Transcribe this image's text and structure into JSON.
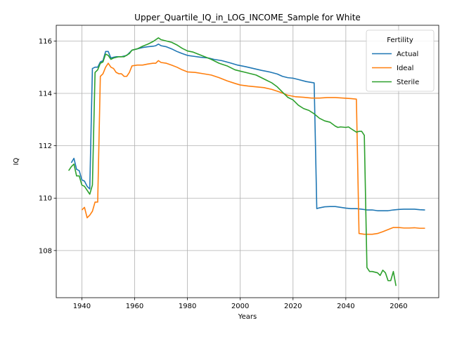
{
  "chart_data": {
    "type": "line",
    "title": "Upper_Quartile_IQ_in_LOG_INCOME_Sample for White",
    "xlabel": "Years",
    "ylabel": "IQ",
    "xlim": [
      1930.3,
      2075.2
    ],
    "ylim": [
      106.2,
      116.6
    ],
    "xticks": [
      1940,
      1960,
      1980,
      2000,
      2020,
      2040,
      2060
    ],
    "yticks": [
      108,
      110,
      112,
      114,
      116
    ],
    "grid": true,
    "legend": {
      "title": "Fertility",
      "placement": "top-right"
    },
    "colors": {
      "Actual": "#1f77b4",
      "Ideal": "#ff7f0e",
      "Sterile": "#2ca02c"
    },
    "series": [
      {
        "name": "Actual",
        "points": [
          [
            1936,
            111.35
          ],
          [
            1937,
            111.52
          ],
          [
            1938,
            111.1
          ],
          [
            1939,
            111.05
          ],
          [
            1940,
            110.7
          ],
          [
            1941,
            110.65
          ],
          [
            1942,
            110.45
          ],
          [
            1943,
            110.35
          ],
          [
            1944,
            114.95
          ],
          [
            1945,
            115.0
          ],
          [
            1946,
            115.0
          ],
          [
            1947,
            115.2
          ],
          [
            1948,
            115.25
          ],
          [
            1949,
            115.6
          ],
          [
            1950,
            115.6
          ],
          [
            1951,
            115.35
          ],
          [
            1952,
            115.38
          ],
          [
            1953,
            115.4
          ],
          [
            1955,
            115.4
          ],
          [
            1957,
            115.45
          ],
          [
            1959,
            115.65
          ],
          [
            1961,
            115.7
          ],
          [
            1963,
            115.75
          ],
          [
            1965,
            115.78
          ],
          [
            1967,
            115.8
          ],
          [
            1968,
            115.82
          ],
          [
            1969,
            115.88
          ],
          [
            1970,
            115.82
          ],
          [
            1972,
            115.78
          ],
          [
            1974,
            115.7
          ],
          [
            1976,
            115.6
          ],
          [
            1978,
            115.52
          ],
          [
            1980,
            115.45
          ],
          [
            1982,
            115.42
          ],
          [
            1985,
            115.38
          ],
          [
            1988,
            115.35
          ],
          [
            1990,
            115.3
          ],
          [
            1993,
            115.25
          ],
          [
            1996,
            115.17
          ],
          [
            1999,
            115.08
          ],
          [
            2002,
            115.02
          ],
          [
            2005,
            114.95
          ],
          [
            2008,
            114.88
          ],
          [
            2011,
            114.82
          ],
          [
            2014,
            114.74
          ],
          [
            2016,
            114.65
          ],
          [
            2018,
            114.6
          ],
          [
            2020,
            114.58
          ],
          [
            2022,
            114.53
          ],
          [
            2025,
            114.45
          ],
          [
            2028,
            114.4
          ],
          [
            2029,
            109.6
          ],
          [
            2030,
            109.63
          ],
          [
            2032,
            109.67
          ],
          [
            2034,
            109.68
          ],
          [
            2036,
            109.68
          ],
          [
            2038,
            109.65
          ],
          [
            2040,
            109.62
          ],
          [
            2042,
            109.6
          ],
          [
            2044,
            109.6
          ],
          [
            2046,
            109.58
          ],
          [
            2048,
            109.55
          ],
          [
            2050,
            109.55
          ],
          [
            2052,
            109.52
          ],
          [
            2054,
            109.52
          ],
          [
            2056,
            109.52
          ],
          [
            2058,
            109.55
          ],
          [
            2060,
            109.57
          ],
          [
            2062,
            109.58
          ],
          [
            2064,
            109.58
          ],
          [
            2066,
            109.58
          ],
          [
            2068,
            109.56
          ],
          [
            2070,
            109.55
          ]
        ]
      },
      {
        "name": "Ideal",
        "points": [
          [
            1940,
            109.55
          ],
          [
            1941,
            109.65
          ],
          [
            1942,
            109.25
          ],
          [
            1943,
            109.35
          ],
          [
            1944,
            109.5
          ],
          [
            1945,
            109.85
          ],
          [
            1946,
            109.85
          ],
          [
            1947,
            114.65
          ],
          [
            1948,
            114.75
          ],
          [
            1949,
            115.0
          ],
          [
            1950,
            115.15
          ],
          [
            1951,
            115.0
          ],
          [
            1952,
            114.95
          ],
          [
            1953,
            114.8
          ],
          [
            1954,
            114.75
          ],
          [
            1955,
            114.75
          ],
          [
            1956,
            114.65
          ],
          [
            1957,
            114.65
          ],
          [
            1958,
            114.8
          ],
          [
            1959,
            115.05
          ],
          [
            1961,
            115.08
          ],
          [
            1963,
            115.08
          ],
          [
            1965,
            115.12
          ],
          [
            1967,
            115.15
          ],
          [
            1968,
            115.15
          ],
          [
            1969,
            115.25
          ],
          [
            1970,
            115.18
          ],
          [
            1972,
            115.15
          ],
          [
            1974,
            115.08
          ],
          [
            1976,
            115.0
          ],
          [
            1978,
            114.9
          ],
          [
            1980,
            114.82
          ],
          [
            1983,
            114.8
          ],
          [
            1986,
            114.75
          ],
          [
            1989,
            114.7
          ],
          [
            1992,
            114.6
          ],
          [
            1995,
            114.48
          ],
          [
            1998,
            114.38
          ],
          [
            2000,
            114.32
          ],
          [
            2003,
            114.28
          ],
          [
            2006,
            114.25
          ],
          [
            2009,
            114.22
          ],
          [
            2012,
            114.15
          ],
          [
            2015,
            114.05
          ],
          [
            2018,
            113.93
          ],
          [
            2021,
            113.87
          ],
          [
            2024,
            113.85
          ],
          [
            2027,
            113.82
          ],
          [
            2030,
            113.82
          ],
          [
            2033,
            113.84
          ],
          [
            2036,
            113.84
          ],
          [
            2039,
            113.82
          ],
          [
            2042,
            113.8
          ],
          [
            2044,
            113.78
          ],
          [
            2045,
            108.65
          ],
          [
            2047,
            108.62
          ],
          [
            2050,
            108.62
          ],
          [
            2052,
            108.65
          ],
          [
            2054,
            108.72
          ],
          [
            2056,
            108.8
          ],
          [
            2058,
            108.88
          ],
          [
            2060,
            108.88
          ],
          [
            2062,
            108.86
          ],
          [
            2064,
            108.86
          ],
          [
            2066,
            108.87
          ],
          [
            2068,
            108.85
          ],
          [
            2070,
            108.85
          ]
        ]
      },
      {
        "name": "Sterile",
        "points": [
          [
            1935,
            111.05
          ],
          [
            1936,
            111.2
          ],
          [
            1937,
            111.3
          ],
          [
            1938,
            110.85
          ],
          [
            1939,
            110.85
          ],
          [
            1940,
            110.5
          ],
          [
            1941,
            110.45
          ],
          [
            1942,
            110.3
          ],
          [
            1943,
            110.15
          ],
          [
            1944,
            110.5
          ],
          [
            1945,
            114.8
          ],
          [
            1946,
            114.9
          ],
          [
            1947,
            115.15
          ],
          [
            1948,
            115.2
          ],
          [
            1949,
            115.5
          ],
          [
            1950,
            115.45
          ],
          [
            1951,
            115.3
          ],
          [
            1952,
            115.35
          ],
          [
            1954,
            115.4
          ],
          [
            1956,
            115.4
          ],
          [
            1958,
            115.52
          ],
          [
            1959,
            115.65
          ],
          [
            1961,
            115.7
          ],
          [
            1963,
            115.8
          ],
          [
            1965,
            115.88
          ],
          [
            1967,
            115.98
          ],
          [
            1969,
            116.12
          ],
          [
            1970,
            116.05
          ],
          [
            1972,
            116.0
          ],
          [
            1974,
            115.95
          ],
          [
            1976,
            115.85
          ],
          [
            1978,
            115.72
          ],
          [
            1980,
            115.62
          ],
          [
            1982,
            115.58
          ],
          [
            1984,
            115.5
          ],
          [
            1986,
            115.42
          ],
          [
            1989,
            115.3
          ],
          [
            1992,
            115.15
          ],
          [
            1995,
            115.05
          ],
          [
            1998,
            114.9
          ],
          [
            2000,
            114.85
          ],
          [
            2002,
            114.8
          ],
          [
            2004,
            114.75
          ],
          [
            2006,
            114.7
          ],
          [
            2008,
            114.6
          ],
          [
            2010,
            114.5
          ],
          [
            2012,
            114.4
          ],
          [
            2014,
            114.25
          ],
          [
            2016,
            114.05
          ],
          [
            2018,
            113.85
          ],
          [
            2020,
            113.75
          ],
          [
            2022,
            113.55
          ],
          [
            2024,
            113.42
          ],
          [
            2026,
            113.35
          ],
          [
            2028,
            113.22
          ],
          [
            2030,
            113.05
          ],
          [
            2032,
            112.95
          ],
          [
            2034,
            112.9
          ],
          [
            2036,
            112.75
          ],
          [
            2037,
            112.7
          ],
          [
            2038,
            112.72
          ],
          [
            2040,
            112.7
          ],
          [
            2041,
            112.72
          ],
          [
            2042,
            112.65
          ],
          [
            2044,
            112.52
          ],
          [
            2045,
            112.55
          ],
          [
            2046,
            112.55
          ],
          [
            2047,
            112.4
          ],
          [
            2048,
            107.35
          ],
          [
            2049,
            107.2
          ],
          [
            2050,
            107.2
          ],
          [
            2052,
            107.15
          ],
          [
            2053,
            107.05
          ],
          [
            2054,
            107.25
          ],
          [
            2055,
            107.15
          ],
          [
            2056,
            106.85
          ],
          [
            2057,
            106.85
          ],
          [
            2058,
            107.2
          ],
          [
            2059,
            106.65
          ]
        ]
      }
    ]
  }
}
